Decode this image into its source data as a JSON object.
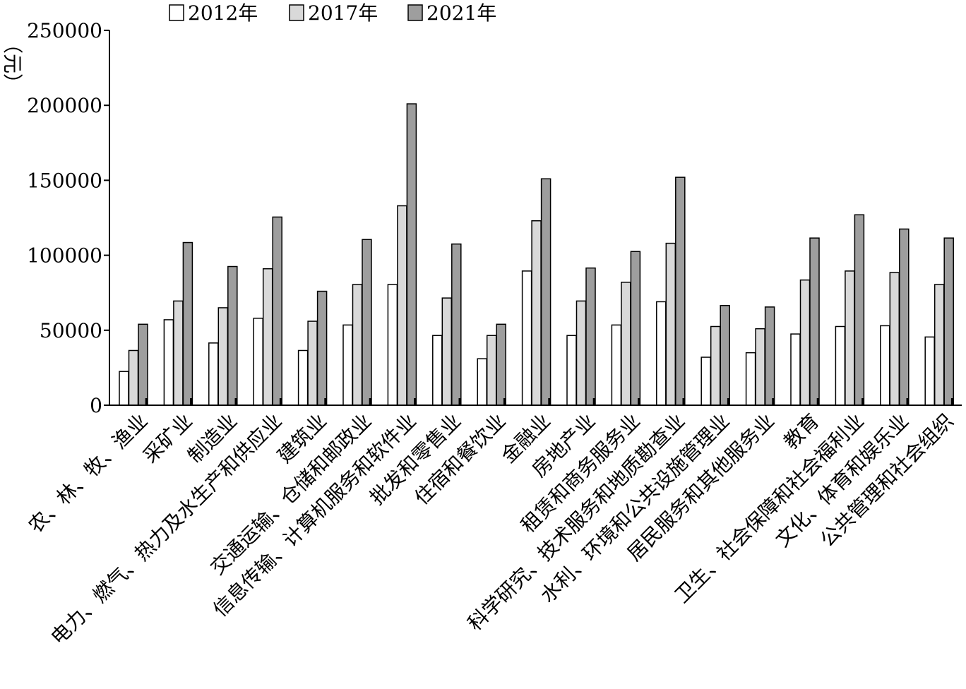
{
  "chart_data": {
    "type": "bar",
    "ylabel": "（元）",
    "ylim": [
      0,
      250000
    ],
    "yticks": [
      0,
      50000,
      100000,
      150000,
      200000,
      250000
    ],
    "grid": false,
    "legend_position": "top",
    "categories": [
      "农、林、牧、渔业",
      "采矿业",
      "制造业",
      "电力、燃气、热力及水生产和供应业",
      "建筑业",
      "交通运输、仓储和邮政业",
      "信息传输、计算机服务和软件业",
      "批发和零售业",
      "住宿和餐饮业",
      "金融业",
      "房地产业",
      "租赁和商务服务业",
      "科学研究、技术服务和地质勘查业",
      "水利、环境和公共设施管理业",
      "居民服务和其他服务业",
      "教育",
      "卫生、社会保障和社会福利业",
      "文化、体育和娱乐业",
      "公共管理和社会组织"
    ],
    "series": [
      {
        "name": "2012年",
        "color": "#ffffff",
        "values": [
          22500,
          57000,
          41500,
          58000,
          36500,
          53500,
          80500,
          46500,
          31000,
          89500,
          46500,
          53500,
          69000,
          32000,
          35000,
          47500,
          52500,
          53000,
          45500
        ]
      },
      {
        "name": "2017年",
        "color": "#d9d9d9",
        "values": [
          36500,
          69500,
          65000,
          91000,
          56000,
          80500,
          133000,
          71500,
          46500,
          123000,
          69500,
          82000,
          108000,
          52500,
          51000,
          83500,
          89500,
          88500,
          80500
        ]
      },
      {
        "name": "2021年",
        "color": "#9e9e9e",
        "values": [
          54000,
          108500,
          92500,
          125500,
          76000,
          110500,
          201000,
          107500,
          54000,
          151000,
          91500,
          102500,
          152000,
          66500,
          65500,
          111500,
          127000,
          117500,
          111500
        ]
      }
    ]
  }
}
